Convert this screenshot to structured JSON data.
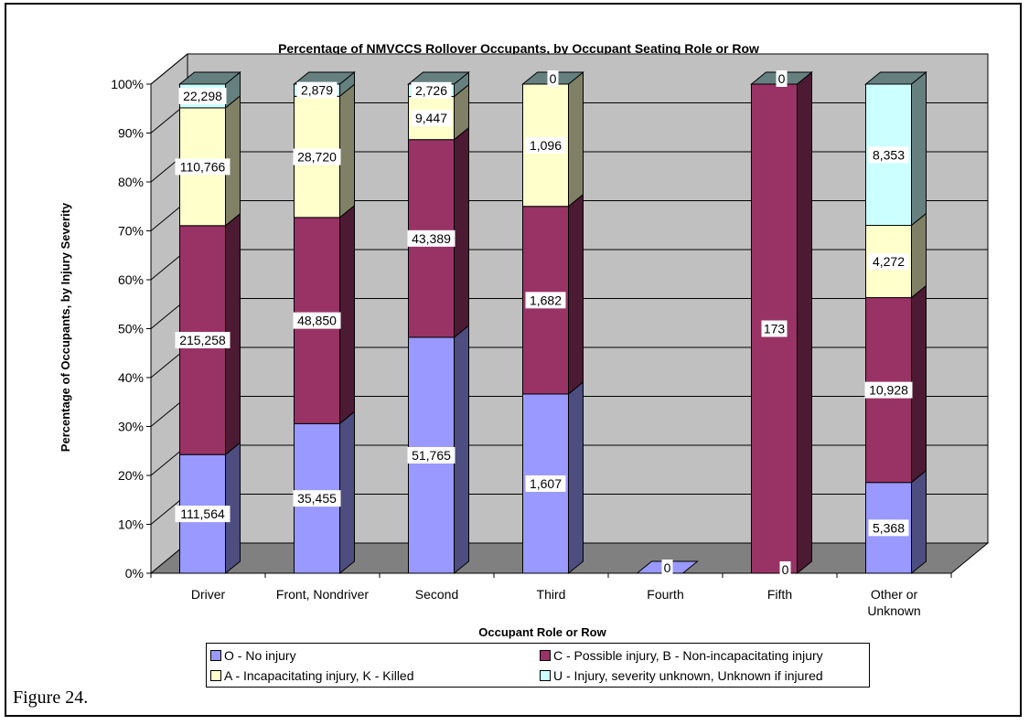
{
  "figure_caption": "Figure 24.",
  "chart_data": {
    "type": "bar",
    "stacked": "percent",
    "title": "Percentage of NMVCCS Rollover Occupants, by Occupant Seating Role or Row",
    "xlabel": "Occupant Role or Row",
    "ylabel": "Percentage of Occupants, by Injury Severity",
    "ylim": [
      0,
      100
    ],
    "y_ticks": [
      "0%",
      "10%",
      "20%",
      "30%",
      "40%",
      "50%",
      "60%",
      "70%",
      "80%",
      "90%",
      "100%"
    ],
    "grid": true,
    "legend_position": "bottom",
    "categories": [
      "Driver",
      "Front, Nondriver",
      "Second",
      "Third",
      "Fourth",
      "Fifth",
      "Other or Unknown"
    ],
    "series": [
      {
        "name": "O - No injury",
        "color": "#9999ff",
        "side": "#4d4d80",
        "values": [
          111564,
          35455,
          51765,
          1607,
          0,
          0,
          5368
        ],
        "labels": [
          "111,564",
          "35,455",
          "51,765",
          "1,607",
          "0",
          "0",
          "5,368"
        ]
      },
      {
        "name": "C - Possible injury, B - Non-incapacitating injury",
        "color": "#993366",
        "side": "#4d1a33",
        "values": [
          215258,
          48850,
          43389,
          1682,
          null,
          173,
          10928
        ],
        "labels": [
          "215,258",
          "48,850",
          "43,389",
          "1,682",
          "",
          "173",
          "10,928"
        ]
      },
      {
        "name": "A - Incapacitating injury, K - Killed",
        "color": "#ffffcc",
        "side": "#808066",
        "values": [
          110766,
          28720,
          9447,
          1096,
          null,
          null,
          4272
        ],
        "labels": [
          "110,766",
          "28,720",
          "9,447",
          "1,096",
          "",
          "",
          "4,272"
        ]
      },
      {
        "name": "U - Injury, severity unknown, Unknown if injured",
        "color": "#ccffff",
        "side": "#668080",
        "values": [
          22298,
          2879,
          2726,
          0,
          null,
          0,
          8353
        ],
        "labels": [
          "22,298",
          "2,879",
          "2,726",
          "0",
          "",
          "0",
          "8,353"
        ]
      }
    ]
  }
}
